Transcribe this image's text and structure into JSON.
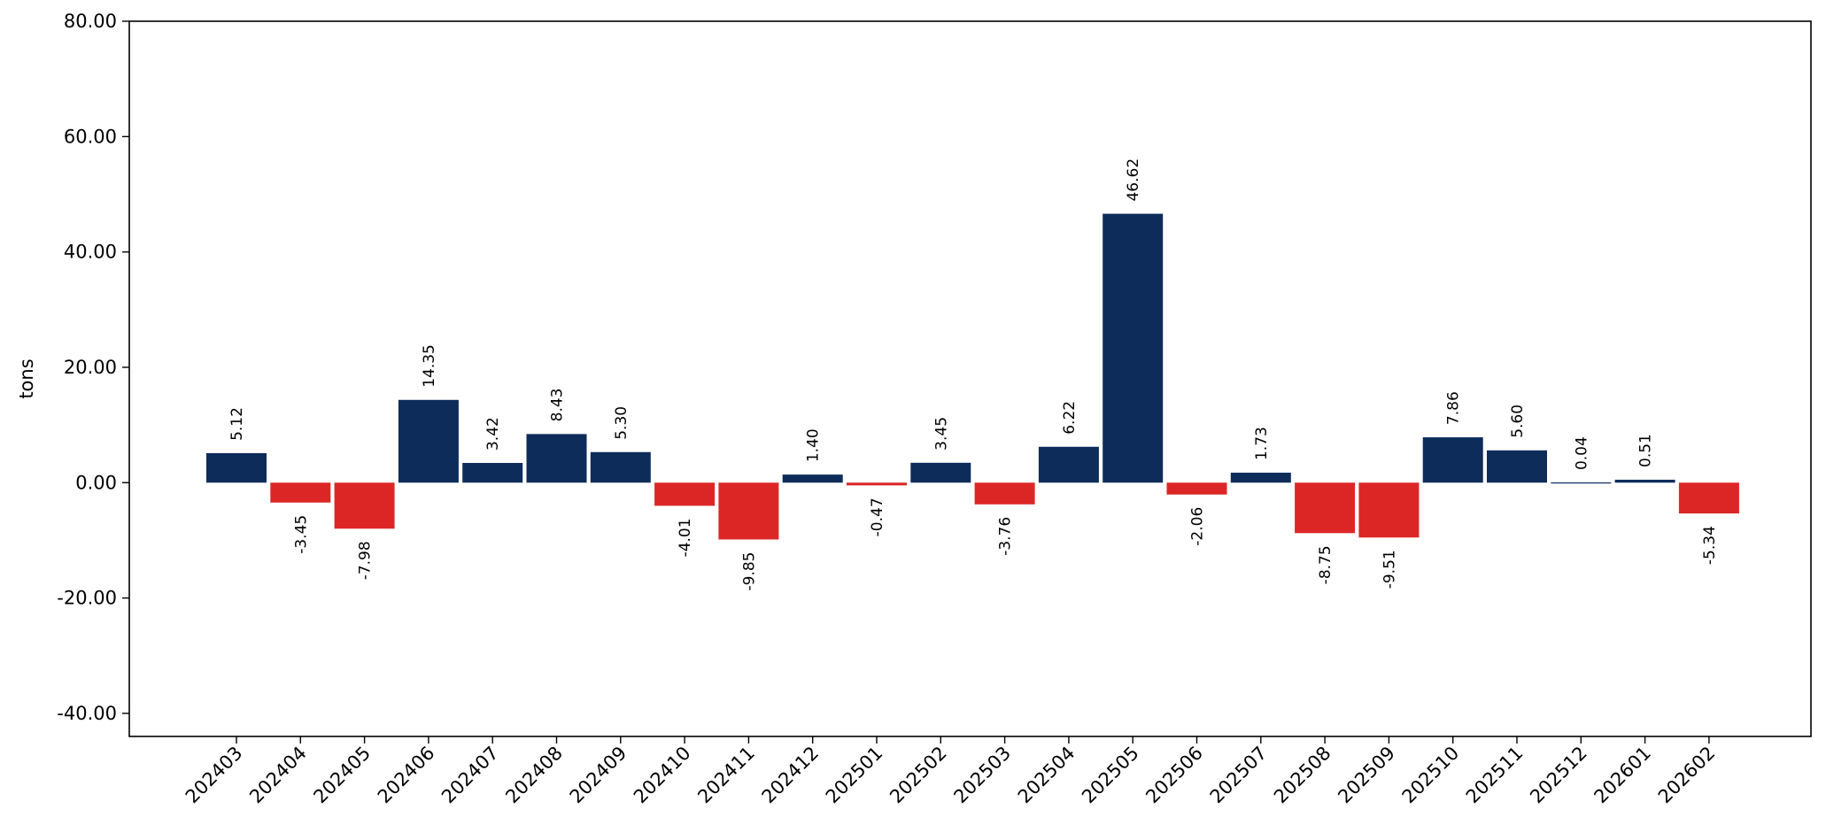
{
  "chart_data": {
    "type": "bar",
    "title": "",
    "xlabel": "",
    "ylabel": "tons",
    "ylim": [
      -44,
      80
    ],
    "y_ticks": [
      "-40.00",
      "-20.00",
      "0.00",
      "20.00",
      "40.00",
      "60.00",
      "80.00"
    ],
    "y_tick_values": [
      -40,
      -20,
      0,
      20,
      40,
      60,
      80
    ],
    "grid": false,
    "legend": "none",
    "categories": [
      "202403",
      "202404",
      "202405",
      "202406",
      "202407",
      "202408",
      "202409",
      "202410",
      "202411",
      "202412",
      "202501",
      "202502",
      "202503",
      "202504",
      "202505",
      "202506",
      "202507",
      "202508",
      "202509",
      "202510",
      "202511",
      "202512",
      "202601",
      "202602"
    ],
    "values": [
      5.12,
      -3.45,
      -7.98,
      14.35,
      3.42,
      8.43,
      5.3,
      -4.01,
      -9.85,
      1.4,
      -0.47,
      3.45,
      -3.76,
      6.22,
      46.62,
      -2.06,
      1.73,
      -8.75,
      -9.51,
      7.86,
      5.6,
      0.04,
      0.51,
      -5.34
    ],
    "value_labels": [
      "5.12",
      "-3.45",
      "-7.98",
      "14.35",
      "3.42",
      "8.43",
      "5.30",
      "-4.01",
      "-9.85",
      "1.40",
      "-0.47",
      "3.45",
      "-3.76",
      "6.22",
      "46.62",
      "-2.06",
      "1.73",
      "-8.75",
      "-9.51",
      "7.86",
      "5.60",
      "0.04",
      "0.51",
      "-5.34"
    ],
    "colors": {
      "positive": "#0d2c5a",
      "negative": "#dc2626",
      "axis": "#000000"
    }
  }
}
